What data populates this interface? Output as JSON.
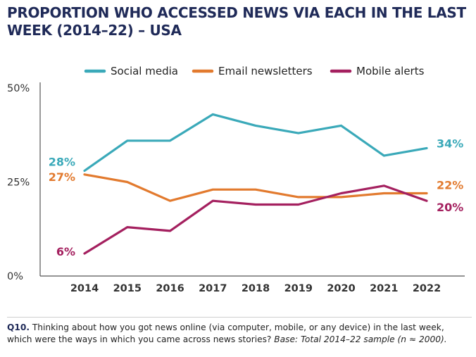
{
  "title": "PROPORTION WHO ACCESSED NEWS VIA EACH IN THE LAST WEEK (2014–22) – USA",
  "chart_data": {
    "type": "line",
    "title": "PROPORTION WHO ACCESSED NEWS VIA EACH IN THE LAST WEEK (2014–22) – USA",
    "xlabel": "",
    "ylabel": "",
    "x": [
      "2014",
      "2015",
      "2016",
      "2017",
      "2018",
      "2019",
      "2020",
      "2021",
      "2022"
    ],
    "ylim": [
      0,
      50
    ],
    "yticks": [
      "0%",
      "25%",
      "50%"
    ],
    "legend_position": "top",
    "series": [
      {
        "name": "Social media",
        "color": "#3aa9b9",
        "values": [
          28,
          36,
          36,
          43,
          40,
          38,
          40,
          32,
          34
        ],
        "start_label": "28%",
        "end_label": "34%"
      },
      {
        "name": "Email newsletters",
        "color": "#e27a2e",
        "values": [
          27,
          25,
          20,
          23,
          23,
          21,
          21,
          22,
          22
        ],
        "start_label": "27%",
        "end_label": "22%"
      },
      {
        "name": "Mobile alerts",
        "color": "#a4205f",
        "values": [
          6,
          13,
          12,
          20,
          19,
          19,
          22,
          24,
          20
        ],
        "start_label": "6%",
        "end_label": "20%"
      }
    ]
  },
  "footnote": {
    "question_id": "Q10.",
    "question": "Thinking about how you got news online (via computer, mobile, or any device) in the last week, which were the ways in which you came across news stories?",
    "base_label": "Base:",
    "base_text": "Total 2014–22 sample (n ≈ 2000)."
  }
}
